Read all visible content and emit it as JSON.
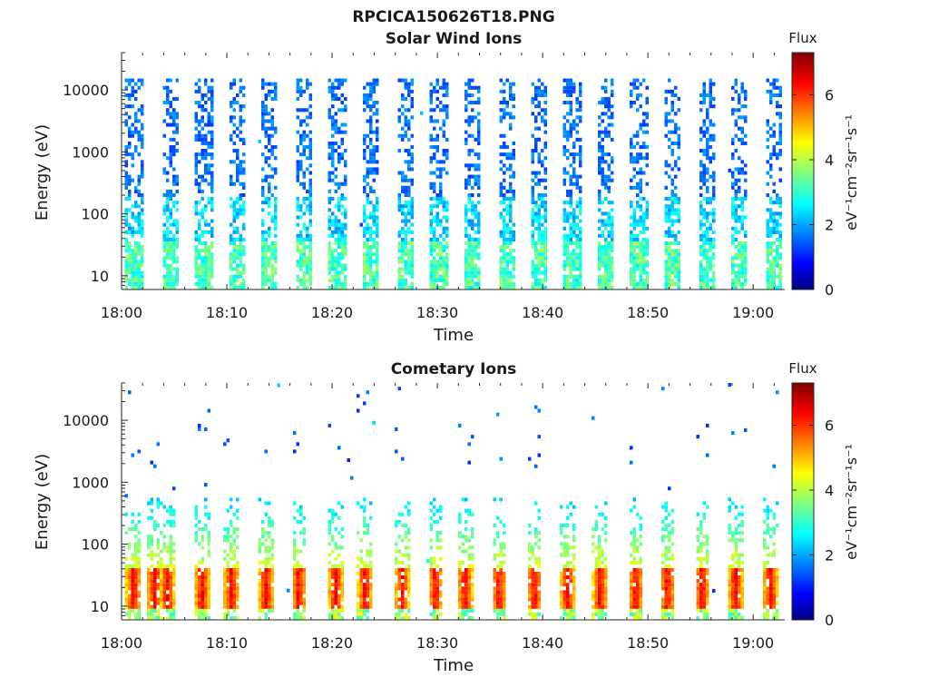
{
  "figure": {
    "title": "RPCICA150626T18.PNG"
  },
  "chart_data": [
    {
      "type": "heatmap",
      "title": "Solar Wind Ions",
      "xlabel": "Time",
      "ylabel": "Energy (eV)",
      "x_range_minutes": [
        0,
        63
      ],
      "x_ticks": [
        {
          "minute": 0,
          "label": "18:00"
        },
        {
          "minute": 10,
          "label": "18:10"
        },
        {
          "minute": 20,
          "label": "18:20"
        },
        {
          "minute": 30,
          "label": "18:30"
        },
        {
          "minute": 40,
          "label": "18:40"
        },
        {
          "minute": 50,
          "label": "18:50"
        },
        {
          "minute": 60,
          "label": "19:00"
        }
      ],
      "y_scale": "log",
      "y_range": [
        6,
        40000
      ],
      "y_ticks": [
        {
          "value": 10,
          "label": "10"
        },
        {
          "value": 100,
          "label": "100"
        },
        {
          "value": 1000,
          "label": "1000"
        },
        {
          "value": 10000,
          "label": "10000"
        }
      ],
      "colorbar": {
        "title": "Flux",
        "label": "eV⁻¹cm⁻²sr⁻¹s⁻¹",
        "range": [
          0,
          7.3
        ],
        "ticks": [
          {
            "value": 0,
            "label": "0"
          },
          {
            "value": 2,
            "label": "2"
          },
          {
            "value": 4,
            "label": "4"
          },
          {
            "value": 6,
            "label": "6"
          }
        ],
        "colormap": "jet"
      },
      "bursts": {
        "start_minutes": [
          0.3,
          3.7,
          6.9,
          10.0,
          13.1,
          16.3,
          19.6,
          22.8,
          26.1,
          29.2,
          32.3,
          35.6,
          38.7,
          41.9,
          45.0,
          48.2,
          51.4,
          54.6,
          57.8,
          61.0
        ],
        "duration_minutes": 1.6,
        "low_energy_peak_flux": 3.9,
        "high_energy_flux": 1.3,
        "max_energy_eV": 15000
      }
    },
    {
      "type": "heatmap",
      "title": "Cometary Ions",
      "xlabel": "Time",
      "ylabel": "Energy (eV)",
      "x_range_minutes": [
        0,
        63
      ],
      "x_ticks": [
        {
          "minute": 0,
          "label": "18:00"
        },
        {
          "minute": 10,
          "label": "18:10"
        },
        {
          "minute": 20,
          "label": "18:20"
        },
        {
          "minute": 30,
          "label": "18:30"
        },
        {
          "minute": 40,
          "label": "18:40"
        },
        {
          "minute": 50,
          "label": "18:50"
        },
        {
          "minute": 60,
          "label": "19:00"
        }
      ],
      "y_scale": "log",
      "y_range": [
        6,
        40000
      ],
      "y_ticks": [
        {
          "value": 10,
          "label": "10"
        },
        {
          "value": 100,
          "label": "100"
        },
        {
          "value": 1000,
          "label": "1000"
        },
        {
          "value": 10000,
          "label": "10000"
        }
      ],
      "colorbar": {
        "title": "Flux",
        "label": "eV⁻¹cm⁻²sr⁻¹s⁻¹",
        "range": [
          0,
          7.3
        ],
        "ticks": [
          {
            "value": 0,
            "label": "0"
          },
          {
            "value": 2,
            "label": "2"
          },
          {
            "value": 4,
            "label": "4"
          },
          {
            "value": 6,
            "label": "6"
          }
        ],
        "colormap": "jet"
      },
      "bursts": {
        "start_minutes": [
          0.3,
          2.3,
          3.5,
          6.8,
          9.6,
          12.9,
          16.0,
          19.5,
          22.3,
          25.8,
          29.0,
          31.8,
          35.0,
          38.4,
          41.5,
          44.6,
          48.0,
          51.0,
          54.3,
          57.5,
          60.8
        ],
        "duration_minutes": 1.4,
        "core_energy_eV": [
          9,
          40
        ],
        "core_peak_flux": 6.2,
        "tail_max_energy_eV": 600
      }
    }
  ]
}
